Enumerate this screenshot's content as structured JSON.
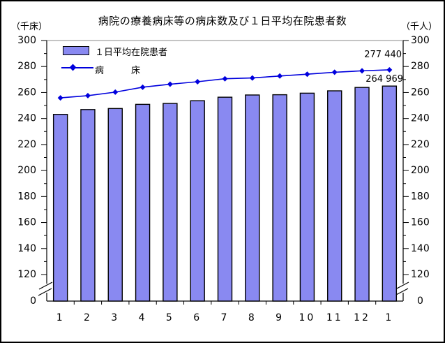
{
  "title": "病院の療養病床等の病床数及び１日平均在院患者数",
  "axis_units": {
    "left": "（千床）",
    "right": "（千人）"
  },
  "legend": {
    "bar_label": "１日平均在院患者",
    "line_label": "病　　　床"
  },
  "annotations": {
    "line_end": "277 440",
    "bar_end": "264 969"
  },
  "colors": {
    "bar_fill": "#8989f1",
    "bar_stroke": "#000000",
    "line": "#0000dd",
    "plot_top_border": "#8a8a8a",
    "axis": "#000000"
  },
  "chart_data": {
    "type": "bar+line combo with broken y-axis",
    "title": "病院の療養病床等の病床数及び１日平均在院患者数",
    "categories": [
      "1",
      "2",
      "3",
      "4",
      "5",
      "6",
      "7",
      "8",
      "9",
      "10",
      "11",
      "12",
      "1"
    ],
    "x_axis_note": "months, January through December plus following January",
    "series": [
      {
        "name": "１日平均在院患者",
        "type": "bar",
        "unit": "千人",
        "values": [
          243.2,
          246.9,
          247.7,
          250.9,
          251.6,
          253.7,
          256.4,
          258.1,
          258.3,
          259.5,
          261.3,
          263.9,
          264.969
        ]
      },
      {
        "name": "病床",
        "type": "line",
        "marker": "diamond",
        "unit": "千床",
        "values": [
          255.9,
          257.6,
          260.3,
          264.1,
          266.4,
          268.3,
          270.6,
          271.2,
          272.7,
          274.1,
          275.6,
          276.7,
          277.44
        ]
      }
    ],
    "data_labels": [
      {
        "text": "277 440",
        "series": "病床",
        "point_index": 12
      },
      {
        "text": "264 969",
        "series": "１日平均在院患者",
        "point_index": 12
      }
    ],
    "yticks": [
      300,
      280,
      260,
      240,
      220,
      200,
      180,
      160,
      140,
      120,
      0
    ],
    "minor_ytick_step": 10,
    "ylim": [
      0,
      300
    ],
    "axis_break_between": [
      0,
      120
    ],
    "grid": false,
    "legend_position": "top-left inside plot",
    "ylabel_left": "（千床）",
    "ylabel_right": "（千人）"
  }
}
